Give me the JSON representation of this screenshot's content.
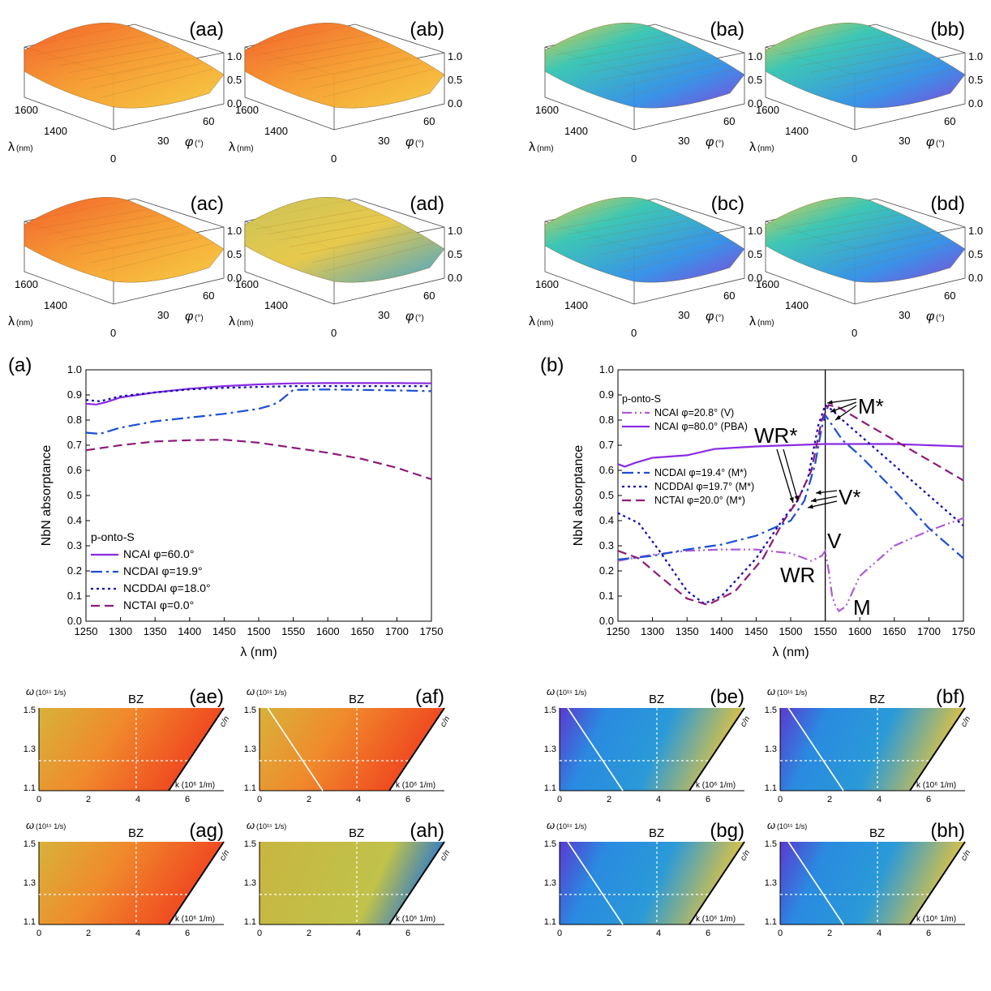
{
  "surface_panels": [
    {
      "label": "(aa)",
      "tone": "warm",
      "zticks": [
        "1.0",
        "0.5",
        "0.0"
      ],
      "lambda_ticks": [
        "1600",
        "1400"
      ],
      "phi_ticks": [
        "0",
        "30",
        "60"
      ],
      "lambda_unit": "(nm)",
      "phi_unit": "(°)"
    },
    {
      "label": "(ab)",
      "tone": "warm",
      "zticks": [
        "1.0",
        "0.5",
        "0.0"
      ],
      "lambda_ticks": [
        "1600",
        "1400"
      ],
      "phi_ticks": [
        "0",
        "30",
        "60"
      ],
      "lambda_unit": "(nm)",
      "phi_unit": "(°)"
    },
    {
      "label": "(ac)",
      "tone": "warm",
      "zticks": [
        "1.0",
        "0.5",
        "0.0"
      ],
      "lambda_ticks": [
        "1600",
        "1400"
      ],
      "phi_ticks": [
        "0",
        "30",
        "60"
      ],
      "lambda_unit": "(nm)",
      "phi_unit": "(°)"
    },
    {
      "label": "(ad)",
      "tone": "yellow",
      "zticks": [
        "1.0",
        "0.5",
        "0.0"
      ],
      "lambda_ticks": [
        "1600",
        "1400"
      ],
      "phi_ticks": [
        "0",
        "30",
        "60"
      ],
      "lambda_unit": "(nm)",
      "phi_unit": "(°)"
    },
    {
      "label": "(ba)",
      "tone": "cool",
      "zticks": [
        "1.0",
        "0.5",
        "0.0"
      ],
      "lambda_ticks": [
        "1600",
        "1400"
      ],
      "phi_ticks": [
        "0",
        "30",
        "60"
      ],
      "lambda_unit": "(nm)",
      "phi_unit": "(°)"
    },
    {
      "label": "(bb)",
      "tone": "cool",
      "zticks": [
        "1.0",
        "0.5",
        "0.0"
      ],
      "lambda_ticks": [
        "1600",
        "1400"
      ],
      "phi_ticks": [
        "0",
        "30",
        "60"
      ],
      "lambda_unit": "(nm)",
      "phi_unit": "(°)"
    },
    {
      "label": "(bc)",
      "tone": "cool",
      "zticks": [
        "1.0",
        "0.5",
        "0.0"
      ],
      "lambda_ticks": [
        "1600",
        "1400"
      ],
      "phi_ticks": [
        "0",
        "30",
        "60"
      ],
      "lambda_unit": "(nm)",
      "phi_unit": "(°)"
    },
    {
      "label": "(bd)",
      "tone": "cool",
      "zticks": [
        "1.0",
        "0.5",
        "0.0"
      ],
      "lambda_ticks": [
        "1600",
        "1400"
      ],
      "phi_ticks": [
        "0",
        "30",
        "60"
      ],
      "lambda_unit": "(nm)",
      "phi_unit": "(°)"
    }
  ],
  "map_panels": [
    {
      "label": "(ae)",
      "tone": "warm",
      "diag": false
    },
    {
      "label": "(af)",
      "tone": "warm",
      "diag": true
    },
    {
      "label": "(ag)",
      "tone": "warm",
      "diag": false
    },
    {
      "label": "(ah)",
      "tone": "yellow",
      "diag": false
    },
    {
      "label": "(be)",
      "tone": "cool",
      "diag": true
    },
    {
      "label": "(bf)",
      "tone": "cool",
      "diag": true
    },
    {
      "label": "(bg)",
      "tone": "cool",
      "diag": true
    },
    {
      "label": "(bh)",
      "tone": "cool",
      "diag": true
    }
  ],
  "map_labels": {
    "omega": "ω",
    "omega_unit": "(10¹⁵ 1/s)",
    "k": "k (10⁶ 1/m)",
    "bz": "BZ",
    "cn": "c/n",
    "yticks": [
      "1.5",
      "1.3",
      "1.1"
    ],
    "xticks": [
      "0",
      "2",
      "4",
      "6"
    ]
  },
  "chart_data": [
    {
      "type": "line",
      "panel_label": "(a)",
      "xlabel": "λ (nm)",
      "ylabel": "NbN absorptance",
      "xlim": [
        1250,
        1750
      ],
      "ylim": [
        0,
        1
      ],
      "xticks": [
        1250,
        1300,
        1350,
        1400,
        1450,
        1500,
        1550,
        1600,
        1650,
        1700,
        1750
      ],
      "yticks": [
        0,
        0.1,
        0.2,
        0.3,
        0.4,
        0.5,
        0.6,
        0.7,
        0.8,
        0.9,
        1.0
      ],
      "legend_title": "p-onto-S",
      "legend_position": "bottom-left",
      "series": [
        {
          "name": "NCAI φ=60.0°",
          "color": "#8a2be2",
          "dash": "",
          "x": [
            1250,
            1265,
            1280,
            1300,
            1350,
            1400,
            1450,
            1500,
            1550,
            1600,
            1650,
            1700,
            1750
          ],
          "y": [
            0.865,
            0.862,
            0.872,
            0.89,
            0.91,
            0.925,
            0.935,
            0.942,
            0.946,
            0.947,
            0.947,
            0.947,
            0.946
          ]
        },
        {
          "name": "NCDAI φ=19.9°",
          "color": "#1a4fd6",
          "dash": "14 5 3 5",
          "x": [
            1250,
            1270,
            1300,
            1350,
            1400,
            1450,
            1500,
            1520,
            1530,
            1550,
            1600,
            1650,
            1700,
            1750
          ],
          "y": [
            0.75,
            0.745,
            0.77,
            0.795,
            0.81,
            0.825,
            0.845,
            0.86,
            0.875,
            0.92,
            0.922,
            0.92,
            0.918,
            0.915
          ]
        },
        {
          "name": "NCDDAI φ=18.0°",
          "color": "#0a0ab4",
          "dash": "3 4",
          "x": [
            1250,
            1270,
            1300,
            1350,
            1400,
            1450,
            1500,
            1550,
            1600,
            1650,
            1700,
            1750
          ],
          "y": [
            0.88,
            0.875,
            0.895,
            0.91,
            0.922,
            0.928,
            0.932,
            0.935,
            0.935,
            0.935,
            0.935,
            0.935
          ]
        },
        {
          "name": "NCTAI φ=0.0°",
          "color": "#8e1a7a",
          "dash": "11 6",
          "x": [
            1250,
            1300,
            1350,
            1400,
            1450,
            1500,
            1550,
            1600,
            1650,
            1700,
            1750
          ],
          "y": [
            0.68,
            0.7,
            0.715,
            0.72,
            0.722,
            0.71,
            0.69,
            0.67,
            0.645,
            0.61,
            0.565
          ]
        }
      ]
    },
    {
      "type": "line",
      "panel_label": "(b)",
      "xlabel": "λ (nm)",
      "ylabel": "NbN absorptance",
      "xlim": [
        1250,
        1750
      ],
      "ylim": [
        0,
        1
      ],
      "xticks": [
        1250,
        1300,
        1350,
        1400,
        1450,
        1500,
        1550,
        1600,
        1650,
        1700,
        1750
      ],
      "yticks": [
        0,
        0.1,
        0.2,
        0.3,
        0.4,
        0.5,
        0.6,
        0.7,
        0.8,
        0.9,
        1.0
      ],
      "legend_title": "p-onto-S",
      "legend_position": "left",
      "vline": 1550,
      "annotations": [
        "M*",
        "WR*",
        "V*",
        "V",
        "WR",
        "M"
      ],
      "series": [
        {
          "name": "NCAI φ=20.8° (V)",
          "color": "#b05ad8",
          "dash": "12 4 2 4 2 4",
          "x": [
            1250,
            1300,
            1350,
            1400,
            1450,
            1500,
            1530,
            1545,
            1550,
            1555,
            1560,
            1565,
            1570,
            1580,
            1600,
            1650,
            1700,
            1750
          ],
          "y": [
            0.24,
            0.265,
            0.28,
            0.285,
            0.285,
            0.27,
            0.24,
            0.26,
            0.28,
            0.2,
            0.1,
            0.06,
            0.04,
            0.06,
            0.18,
            0.3,
            0.36,
            0.41
          ]
        },
        {
          "name": "NCAI φ=80.0° (PBA)",
          "color": "#8a2be2",
          "dash": "",
          "x": [
            1250,
            1260,
            1275,
            1300,
            1350,
            1390,
            1450,
            1500,
            1550,
            1600,
            1650,
            1700,
            1750
          ],
          "y": [
            0.625,
            0.615,
            0.63,
            0.65,
            0.66,
            0.685,
            0.695,
            0.7,
            0.705,
            0.705,
            0.705,
            0.7,
            0.695
          ]
        },
        {
          "name": "NCDAI φ=19.4° (M*)",
          "color": "#1a4fd6",
          "dash": "14 5 3 5",
          "x": [
            1250,
            1300,
            1350,
            1400,
            1450,
            1500,
            1520,
            1535,
            1545,
            1550,
            1560,
            1575,
            1600,
            1650,
            1700,
            1750
          ],
          "y": [
            0.245,
            0.26,
            0.285,
            0.305,
            0.34,
            0.4,
            0.48,
            0.62,
            0.77,
            0.82,
            0.78,
            0.72,
            0.66,
            0.52,
            0.37,
            0.25
          ]
        },
        {
          "name": "NCDDAI φ=19.7° (M*)",
          "color": "#0a0ab4",
          "dash": "3 4",
          "x": [
            1250,
            1280,
            1310,
            1350,
            1375,
            1400,
            1450,
            1490,
            1510,
            1525,
            1540,
            1550,
            1560,
            1575,
            1600,
            1650,
            1700,
            1750
          ],
          "y": [
            0.43,
            0.39,
            0.28,
            0.12,
            0.07,
            0.1,
            0.25,
            0.41,
            0.48,
            0.57,
            0.78,
            0.86,
            0.84,
            0.8,
            0.74,
            0.62,
            0.5,
            0.38
          ]
        },
        {
          "name": "NCTAI φ=20.0° (M*)",
          "color": "#8e1a7a",
          "dash": "11 6",
          "x": [
            1250,
            1280,
            1310,
            1350,
            1380,
            1420,
            1460,
            1490,
            1510,
            1530,
            1545,
            1555,
            1570,
            1600,
            1650,
            1700,
            1750
          ],
          "y": [
            0.28,
            0.25,
            0.18,
            0.09,
            0.065,
            0.12,
            0.25,
            0.4,
            0.48,
            0.6,
            0.8,
            0.86,
            0.85,
            0.8,
            0.72,
            0.64,
            0.56
          ]
        }
      ]
    }
  ]
}
